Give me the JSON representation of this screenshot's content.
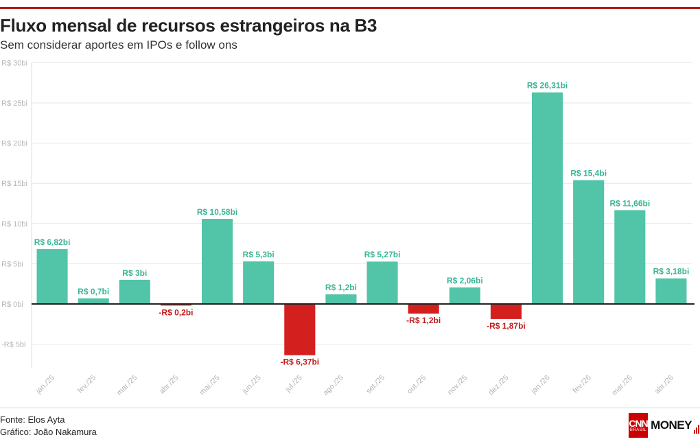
{
  "header": {
    "title": "Fluxo mensal de recursos estrangeiros na B3",
    "subtitle": "Sem considerar aportes em IPOs e follow ons"
  },
  "footer": {
    "source": "Fonte: Elos Ayta",
    "credit": "Gráfico: João Nakamura",
    "logo": {
      "cnn": "CNN",
      "brasil": "BRASIL",
      "money": "MONEY"
    }
  },
  "colors": {
    "positive": "#52c4a7",
    "negative": "#d41f1f",
    "positive_label": "#3bb594",
    "negative_label": "#c21a1a",
    "brand": "#cc0000"
  },
  "chart_data": {
    "type": "bar",
    "title": "Fluxo mensal de recursos estrangeiros na B3",
    "subtitle": "Sem considerar aportes em IPOs e follow ons",
    "categories": [
      "jan./25",
      "fev./25",
      "mar./25",
      "abr./25",
      "mai./25",
      "jun./25",
      "jul./25",
      "ago./25",
      "set./25",
      "out./25",
      "nov./25",
      "dez./25",
      "jan./26",
      "fev./26",
      "mar./26",
      "abr./26"
    ],
    "values": [
      6.82,
      0.7,
      3,
      -0.2,
      10.58,
      5.3,
      -6.37,
      1.2,
      5.27,
      -1.2,
      2.06,
      -1.87,
      26.31,
      15.4,
      11.66,
      3.18
    ],
    "value_labels": [
      "R$ 6,82bi",
      "R$ 0,7bi",
      "R$ 3bi",
      "-R$ 0,2bi",
      "R$ 10,58bi",
      "R$ 5,3bi",
      "-R$ 6,37bi",
      "R$ 1,2bi",
      "R$ 5,27bi",
      "-R$ 1,2bi",
      "R$ 2,06bi",
      "-R$ 1,87bi",
      "R$ 26,31bi",
      "R$ 15,4bi",
      "R$ 11,66bi",
      "R$ 3,18bi"
    ],
    "y_ticks": [
      30,
      25,
      20,
      15,
      10,
      5,
      0,
      -5
    ],
    "y_tick_labels": [
      "R$ 30bi",
      "R$ 25bi",
      "R$ 20bi",
      "R$ 15bi",
      "R$ 10bi",
      "R$ 5bi",
      "R$ 0bi",
      "-R$ 5bi"
    ],
    "ylim": [
      -8,
      30
    ],
    "grid": true,
    "legend": "none"
  }
}
